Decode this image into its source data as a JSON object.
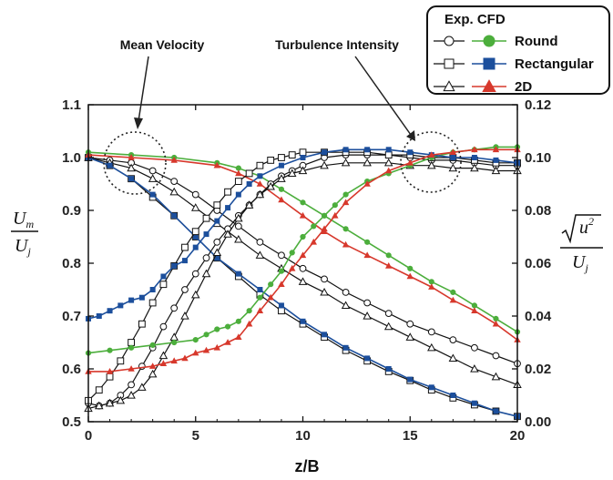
{
  "chart_data": {
    "type": "line",
    "xlabel": "z/B",
    "ylabel_left": {
      "main": "U",
      "main_sub": "m",
      "denom": "U",
      "denom_sub": "j"
    },
    "ylabel_right": {
      "radicand": "u",
      "radicand_sup": "2",
      "denom": "U",
      "denom_sub": "j"
    },
    "x_ticks": [
      "0",
      "5",
      "10",
      "15",
      "20"
    ],
    "y_left_ticks": [
      "0.5",
      "0.6",
      "0.7",
      "0.8",
      "0.9",
      "1.0",
      "1.1"
    ],
    "y_right_ticks": [
      "0.00",
      "0.02",
      "0.04",
      "0.06",
      "0.08",
      "0.10",
      "0.12"
    ],
    "xlim": [
      0,
      20
    ],
    "ylim_left": [
      0.5,
      1.1
    ],
    "ylim_right": [
      0,
      0.12
    ],
    "annotations": [
      "Mean Velocity",
      "Turbulence Intensity"
    ],
    "legend": {
      "header": "Exp. CFD",
      "entries": [
        "Round",
        "Rectangular",
        "2D"
      ],
      "placement": "top-right"
    },
    "colors": {
      "Round": "#4cae3c",
      "Rectangular": "#1c4f9c",
      "2D": "#d7382c",
      "experiment": "#111111"
    },
    "series": [
      {
        "group": "Round",
        "kind": "Exp",
        "marker": "circle",
        "axis": "left",
        "x": [
          0,
          1,
          2,
          3,
          4,
          5,
          6,
          7,
          8,
          9,
          10,
          11,
          12,
          13,
          14,
          15,
          16,
          17,
          18,
          19,
          20
        ],
        "y": [
          1.0,
          0.995,
          0.99,
          0.975,
          0.955,
          0.93,
          0.9,
          0.87,
          0.84,
          0.815,
          0.79,
          0.77,
          0.745,
          0.725,
          0.705,
          0.685,
          0.67,
          0.655,
          0.64,
          0.625,
          0.61
        ]
      },
      {
        "group": "Rectangular",
        "kind": "Exp",
        "marker": "square",
        "axis": "left",
        "x": [
          0,
          1,
          2,
          3,
          4,
          5,
          6,
          7,
          8,
          9,
          10,
          11,
          12,
          13,
          14,
          15,
          16,
          17,
          18,
          19,
          20
        ],
        "y": [
          1.0,
          0.985,
          0.96,
          0.925,
          0.89,
          0.85,
          0.81,
          0.775,
          0.74,
          0.71,
          0.685,
          0.66,
          0.635,
          0.615,
          0.595,
          0.578,
          0.56,
          0.545,
          0.532,
          0.52,
          0.51
        ]
      },
      {
        "group": "2D",
        "kind": "Exp",
        "marker": "triangle",
        "axis": "left",
        "x": [
          0,
          1,
          2,
          3,
          4,
          5,
          6,
          7,
          8,
          9,
          10,
          11,
          12,
          13,
          14,
          15,
          16,
          17,
          18,
          19,
          20
        ],
        "y": [
          1.0,
          0.99,
          0.98,
          0.96,
          0.935,
          0.905,
          0.875,
          0.845,
          0.815,
          0.79,
          0.765,
          0.745,
          0.72,
          0.7,
          0.68,
          0.66,
          0.64,
          0.62,
          0.6,
          0.585,
          0.57
        ]
      },
      {
        "group": "Round",
        "kind": "CFD",
        "marker": "circle",
        "axis": "left",
        "x": [
          0,
          2,
          4,
          6,
          7,
          8,
          9,
          10,
          11,
          12,
          13,
          14,
          15,
          16,
          17,
          18,
          19,
          20
        ],
        "y": [
          1.01,
          1.005,
          1.0,
          0.99,
          0.98,
          0.965,
          0.94,
          0.915,
          0.89,
          0.865,
          0.84,
          0.815,
          0.79,
          0.765,
          0.745,
          0.72,
          0.695,
          0.67
        ]
      },
      {
        "group": "Rectangular",
        "kind": "CFD",
        "marker": "square",
        "axis": "left",
        "x": [
          0,
          1,
          2,
          3,
          4,
          5,
          6,
          7,
          8,
          9,
          10,
          11,
          12,
          13,
          14,
          15,
          16,
          17,
          18,
          19,
          20
        ],
        "y": [
          1.0,
          0.985,
          0.96,
          0.93,
          0.89,
          0.85,
          0.81,
          0.78,
          0.75,
          0.72,
          0.69,
          0.665,
          0.64,
          0.62,
          0.6,
          0.58,
          0.565,
          0.55,
          0.535,
          0.52,
          0.51
        ]
      },
      {
        "group": "2D",
        "kind": "CFD",
        "marker": "triangle",
        "axis": "left",
        "x": [
          0,
          2,
          4,
          6,
          7,
          8,
          9,
          10,
          11,
          12,
          13,
          14,
          15,
          16,
          17,
          18,
          19,
          20
        ],
        "y": [
          1.005,
          1.0,
          0.995,
          0.985,
          0.97,
          0.95,
          0.92,
          0.89,
          0.86,
          0.835,
          0.815,
          0.795,
          0.775,
          0.755,
          0.73,
          0.71,
          0.685,
          0.655
        ]
      },
      {
        "group": "Round",
        "kind": "Exp",
        "marker": "circle",
        "axis": "right",
        "x": [
          0,
          0.5,
          1,
          1.5,
          2,
          2.5,
          3,
          3.5,
          4,
          4.5,
          5,
          5.5,
          6,
          6.5,
          7,
          7.5,
          8,
          8.5,
          9,
          9.5,
          10,
          11,
          12,
          13,
          14,
          15,
          16,
          17,
          18,
          19,
          20
        ],
        "y": [
          0.007,
          0.006,
          0.007,
          0.01,
          0.014,
          0.021,
          0.028,
          0.036,
          0.043,
          0.05,
          0.056,
          0.062,
          0.068,
          0.073,
          0.078,
          0.082,
          0.086,
          0.09,
          0.093,
          0.095,
          0.097,
          0.1,
          0.101,
          0.101,
          0.101,
          0.1,
          0.099,
          0.099,
          0.098,
          0.097,
          0.097
        ]
      },
      {
        "group": "Rectangular",
        "kind": "Exp",
        "marker": "square",
        "axis": "right",
        "x": [
          0,
          0.5,
          1,
          1.5,
          2,
          2.5,
          3,
          3.5,
          4,
          4.5,
          5,
          5.5,
          6,
          6.5,
          7,
          7.5,
          8,
          8.5,
          9,
          9.5,
          10,
          11,
          12,
          13,
          14,
          15,
          16,
          17,
          18,
          19,
          20
        ],
        "y": [
          0.008,
          0.012,
          0.017,
          0.023,
          0.03,
          0.037,
          0.045,
          0.052,
          0.059,
          0.066,
          0.072,
          0.077,
          0.082,
          0.087,
          0.091,
          0.094,
          0.097,
          0.099,
          0.1,
          0.101,
          0.102,
          0.102,
          0.102,
          0.102,
          0.101,
          0.101,
          0.1,
          0.1,
          0.099,
          0.098,
          0.098
        ]
      },
      {
        "group": "2D",
        "kind": "Exp",
        "marker": "triangle",
        "axis": "right",
        "x": [
          0,
          0.5,
          1,
          1.5,
          2,
          2.5,
          3,
          3.5,
          4,
          4.5,
          5,
          5.5,
          6,
          6.5,
          7,
          7.5,
          8,
          8.5,
          9,
          9.5,
          10,
          11,
          12,
          13,
          14,
          15,
          16,
          17,
          18,
          19,
          20
        ],
        "y": [
          0.005,
          0.006,
          0.007,
          0.008,
          0.01,
          0.013,
          0.018,
          0.025,
          0.032,
          0.04,
          0.048,
          0.056,
          0.064,
          0.071,
          0.077,
          0.082,
          0.086,
          0.089,
          0.092,
          0.094,
          0.095,
          0.097,
          0.098,
          0.098,
          0.098,
          0.097,
          0.097,
          0.096,
          0.096,
          0.095,
          0.095
        ]
      },
      {
        "group": "Round",
        "kind": "CFD",
        "marker": "circle",
        "axis": "right",
        "x": [
          0,
          1,
          2,
          3,
          4,
          5,
          5.5,
          6,
          6.5,
          7,
          7.5,
          8,
          8.5,
          9,
          9.5,
          10,
          10.5,
          11,
          11.5,
          12,
          13,
          14,
          15,
          16,
          17,
          18,
          19,
          20
        ],
        "y": [
          0.026,
          0.027,
          0.028,
          0.029,
          0.03,
          0.031,
          0.033,
          0.035,
          0.036,
          0.038,
          0.042,
          0.047,
          0.052,
          0.057,
          0.064,
          0.07,
          0.074,
          0.078,
          0.082,
          0.086,
          0.091,
          0.094,
          0.097,
          0.1,
          0.102,
          0.103,
          0.104,
          0.104
        ]
      },
      {
        "group": "Rectangular",
        "kind": "CFD",
        "marker": "square",
        "axis": "right",
        "x": [
          0,
          0.5,
          1,
          1.5,
          2,
          2.5,
          3,
          3.5,
          4,
          4.5,
          5,
          5.5,
          6,
          6.5,
          7,
          7.5,
          8,
          9,
          10,
          11,
          12,
          13,
          14,
          15,
          16,
          17,
          18,
          19,
          20
        ],
        "y": [
          0.039,
          0.04,
          0.042,
          0.044,
          0.046,
          0.047,
          0.05,
          0.055,
          0.059,
          0.061,
          0.066,
          0.071,
          0.076,
          0.081,
          0.086,
          0.09,
          0.093,
          0.097,
          0.1,
          0.102,
          0.103,
          0.103,
          0.103,
          0.102,
          0.101,
          0.1,
          0.1,
          0.099,
          0.098
        ]
      },
      {
        "group": "2D",
        "kind": "CFD",
        "marker": "triangle",
        "axis": "right",
        "x": [
          0,
          1,
          2,
          3,
          3.5,
          4,
          4.5,
          5,
          5.5,
          6,
          6.5,
          7,
          7.5,
          8,
          8.5,
          9,
          9.5,
          10,
          10.5,
          11,
          11.5,
          12,
          13,
          14,
          15,
          16,
          17,
          18,
          19,
          20
        ],
        "y": [
          0.019,
          0.019,
          0.02,
          0.021,
          0.022,
          0.023,
          0.024,
          0.026,
          0.027,
          0.028,
          0.03,
          0.032,
          0.037,
          0.042,
          0.047,
          0.052,
          0.058,
          0.063,
          0.068,
          0.073,
          0.078,
          0.083,
          0.09,
          0.095,
          0.098,
          0.101,
          0.102,
          0.103,
          0.103,
          0.103
        ]
      }
    ]
  }
}
